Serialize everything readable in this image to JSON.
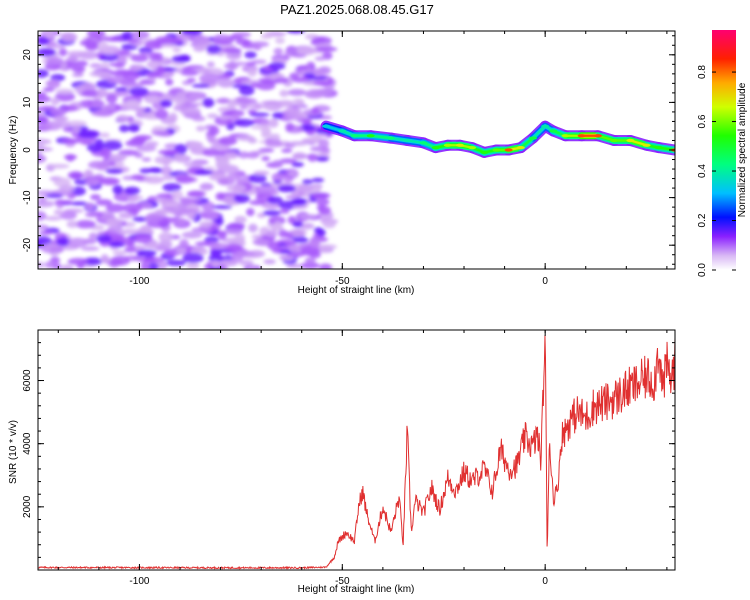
{
  "title": "PAZ1.2025.068.08.45.G17",
  "colors": {
    "line": "#e03030",
    "axis": "#000000",
    "grid_tick": "#000000"
  },
  "chart_data": [
    {
      "type": "heatmap",
      "xlabel": "Height of straight line (km)",
      "ylabel": "Frequency (Hz)",
      "xlim": [
        -125,
        32
      ],
      "ylim": [
        -25,
        25
      ],
      "x_ticks": [
        -100,
        -50,
        0
      ],
      "y_ticks": [
        -20,
        -10,
        0,
        10,
        20
      ],
      "colorbar": {
        "label": "Normalized spectral amplitude",
        "range": [
          0,
          0.97
        ],
        "ticks": [
          0.0,
          0.2,
          0.4,
          0.6,
          0.8
        ],
        "colormap": [
          "#ffffff",
          "#c89bf0",
          "#7a00ff",
          "#0000ff",
          "#00bfff",
          "#00ff40",
          "#ffff00",
          "#ff8000",
          "#ff0000",
          "#ff0070"
        ]
      },
      "noise_region_x": [
        -125,
        -53
      ],
      "ridge": [
        {
          "x": -54,
          "freq": 5.0,
          "amp": 0.35
        },
        {
          "x": -50,
          "freq": 4.0,
          "amp": 0.4
        },
        {
          "x": -47,
          "freq": 3.0,
          "amp": 0.45
        },
        {
          "x": -43,
          "freq": 3.0,
          "amp": 0.55
        },
        {
          "x": -38,
          "freq": 2.5,
          "amp": 0.45
        },
        {
          "x": -34,
          "freq": 2.0,
          "amp": 0.4
        },
        {
          "x": -30,
          "freq": 1.5,
          "amp": 0.45
        },
        {
          "x": -27,
          "freq": 0.5,
          "amp": 0.55
        },
        {
          "x": -24,
          "freq": 1.0,
          "amp": 0.65
        },
        {
          "x": -21,
          "freq": 1.0,
          "amp": 0.7
        },
        {
          "x": -18,
          "freq": 0.5,
          "amp": 0.65
        },
        {
          "x": -15,
          "freq": -0.5,
          "amp": 0.55
        },
        {
          "x": -12,
          "freq": 0.0,
          "amp": 0.6
        },
        {
          "x": -9,
          "freq": 0.0,
          "amp": 0.85
        },
        {
          "x": -6,
          "freq": 0.5,
          "amp": 0.7
        },
        {
          "x": -3,
          "freq": 2.5,
          "amp": 0.5
        },
        {
          "x": 0,
          "freq": 5.0,
          "amp": 0.4
        },
        {
          "x": 2,
          "freq": 4.0,
          "amp": 0.5
        },
        {
          "x": 5,
          "freq": 3.0,
          "amp": 0.65
        },
        {
          "x": 9,
          "freq": 3.0,
          "amp": 0.85
        },
        {
          "x": 13,
          "freq": 3.0,
          "amp": 0.85
        },
        {
          "x": 17,
          "freq": 2.0,
          "amp": 0.6
        },
        {
          "x": 21,
          "freq": 2.0,
          "amp": 0.7
        },
        {
          "x": 25,
          "freq": 1.0,
          "amp": 0.7
        },
        {
          "x": 28,
          "freq": 0.5,
          "amp": 0.55
        },
        {
          "x": 32,
          "freq": 0.0,
          "amp": 0.85
        }
      ]
    },
    {
      "type": "line",
      "xlabel": "Height of straight line (km)",
      "ylabel": "SNR (10 * v/v)",
      "xlim": [
        -125,
        32
      ],
      "ylim": [
        0,
        7600
      ],
      "x_ticks": [
        -100,
        -50,
        0
      ],
      "y_ticks": [
        2000,
        4000,
        6000
      ],
      "series_points": [
        [
          -125,
          80
        ],
        [
          -100,
          75
        ],
        [
          -80,
          70
        ],
        [
          -60,
          70
        ],
        [
          -54,
          90
        ],
        [
          -52,
          400
        ],
        [
          -51,
          900
        ],
        [
          -49,
          1200
        ],
        [
          -47,
          900
        ],
        [
          -46,
          2000
        ],
        [
          -45,
          2500
        ],
        [
          -44,
          1800
        ],
        [
          -42,
          900
        ],
        [
          -40,
          2000
        ],
        [
          -38,
          1200
        ],
        [
          -36,
          2300
        ],
        [
          -35,
          800
        ],
        [
          -34,
          4400
        ],
        [
          -33,
          1200
        ],
        [
          -32,
          2200
        ],
        [
          -30,
          1800
        ],
        [
          -28,
          2600
        ],
        [
          -26,
          1900
        ],
        [
          -24,
          2900
        ],
        [
          -22,
          2500
        ],
        [
          -20,
          3100
        ],
        [
          -18,
          2800
        ],
        [
          -15,
          3200
        ],
        [
          -13,
          2500
        ],
        [
          -11,
          3800
        ],
        [
          -9,
          3200
        ],
        [
          -7,
          3300
        ],
        [
          -5,
          4200
        ],
        [
          -3,
          3900
        ],
        [
          -2,
          4300
        ],
        [
          -1,
          3500
        ],
        [
          0,
          7600
        ],
        [
          0.5,
          300
        ],
        [
          1,
          4200
        ],
        [
          2,
          2300
        ],
        [
          3,
          2500
        ],
        [
          4,
          4200
        ],
        [
          6,
          4700
        ],
        [
          8,
          5000
        ],
        [
          10,
          4800
        ],
        [
          12,
          5200
        ],
        [
          15,
          5300
        ],
        [
          18,
          5500
        ],
        [
          20,
          5700
        ],
        [
          23,
          5900
        ],
        [
          25,
          6100
        ],
        [
          27,
          6000
        ],
        [
          28,
          7100
        ],
        [
          29,
          5700
        ],
        [
          30,
          6500
        ],
        [
          31,
          6000
        ],
        [
          32,
          6600
        ]
      ]
    }
  ]
}
